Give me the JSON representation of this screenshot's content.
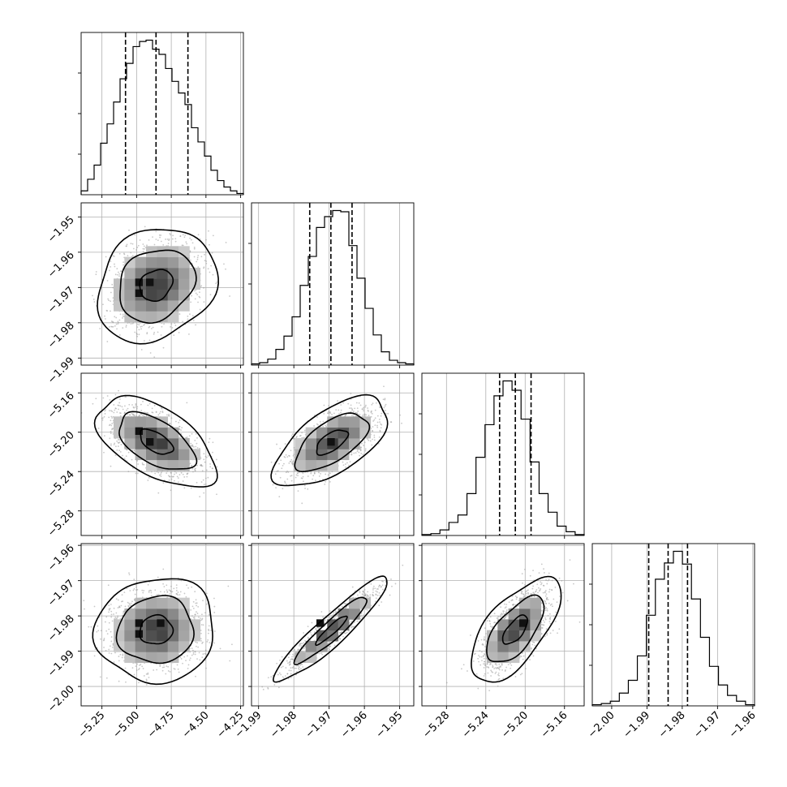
{
  "chart_data": {
    "type": "corner",
    "grid": true,
    "colors": {
      "ink": "#000000",
      "grid": "#b0b0b0",
      "scatter": "#9a9a9a",
      "background": "#ffffff"
    },
    "params": [
      {
        "range": [
          -5.4,
          -4.23
        ],
        "ticks": [
          -5.25,
          -5.0,
          -4.75,
          -4.5,
          -4.25
        ],
        "tick_labels": [
          "−5.25",
          "−5.00",
          "−4.75",
          "−4.50",
          "−4.25"
        ]
      },
      {
        "range": [
          -1.992,
          -1.946
        ],
        "ticks": [
          -1.99,
          -1.98,
          -1.97,
          -1.96,
          -1.95
        ],
        "tick_labels": [
          "−1.99",
          "−1.98",
          "−1.97",
          "−1.96",
          "−1.95"
        ]
      },
      {
        "range": [
          -5.305,
          -5.14
        ],
        "ticks": [
          -5.28,
          -5.24,
          -5.2,
          -5.16
        ],
        "tick_labels": [
          "−5.28",
          "−5.24",
          "−5.20",
          "−5.16"
        ]
      },
      {
        "range": [
          -2.0055,
          -1.9595
        ],
        "ticks": [
          -2.0,
          -1.99,
          -1.98,
          -1.97,
          -1.96
        ],
        "tick_labels": [
          "−2.00",
          "−1.99",
          "−1.98",
          "−1.97",
          "−1.96"
        ]
      }
    ],
    "histograms": [
      {
        "param": 0,
        "quantiles": [
          -5.08,
          -4.86,
          -4.63
        ],
        "edges": [
          -5.4,
          -4.23
        ],
        "counts": [
          0.3,
          1.2,
          2.3,
          4.0,
          5.5,
          7.2,
          9.0,
          10.2,
          11.5,
          11.9,
          12.0,
          11.3,
          10.9,
          9.8,
          8.8,
          7.9,
          7.0,
          5.2,
          4.1,
          3.0,
          1.9,
          1.1,
          0.6,
          0.3,
          0.1
        ]
      },
      {
        "param": 1,
        "quantiles": [
          -1.9755,
          -1.9695,
          -1.9635
        ],
        "edges": [
          -1.992,
          -1.946
        ],
        "counts": [
          0.1,
          0.2,
          0.5,
          1.3,
          2.4,
          4.0,
          6.6,
          9.0,
          11.4,
          12.3,
          12.8,
          12.7,
          9.9,
          7.2,
          4.7,
          2.5,
          1.1,
          0.4,
          0.2,
          0.1
        ]
      },
      {
        "param": 2,
        "quantiles": [
          -5.226,
          -5.21,
          -5.194
        ],
        "edges": [
          -5.305,
          -5.14
        ],
        "counts": [
          0.1,
          0.2,
          0.6,
          1.4,
          2.2,
          4.5,
          8.4,
          11.9,
          15.0,
          16.6,
          15.6,
          12.5,
          7.9,
          4.5,
          2.5,
          1.0,
          0.4,
          0.1
        ]
      },
      {
        "param": 3,
        "quantiles": [
          -1.9895,
          -1.984,
          -1.9785
        ],
        "edges": [
          -2.0055,
          -1.9595
        ],
        "counts": [
          0.1,
          0.2,
          0.4,
          1.1,
          2.2,
          4.3,
          7.8,
          10.9,
          12.3,
          13.3,
          12.2,
          9.2,
          5.9,
          3.4,
          1.8,
          0.9,
          0.4,
          0.1
        ]
      }
    ],
    "pairs": [
      {
        "x_param": 0,
        "y_param": 1,
        "mean": [
          -4.86,
          -1.9693
        ],
        "sd": [
          0.16,
          0.006
        ],
        "corr": 0.2,
        "box_levels": [
          0.35,
          0.7,
          1.05
        ],
        "densest_cells": [
          [
            -4.95,
            -1.9685
          ],
          [
            -4.9,
            -1.9695
          ],
          [
            -4.95,
            -1.972
          ]
        ]
      },
      {
        "x_param": 0,
        "y_param": 2,
        "mean": [
          -4.86,
          -5.21
        ],
        "sd": [
          0.16,
          0.017
        ],
        "corr": -0.55,
        "box_levels": [
          0.32,
          0.66,
          0.99
        ],
        "densest_cells": [
          [
            -5.0,
            -5.2
          ],
          [
            -4.9,
            -5.207
          ]
        ]
      },
      {
        "x_param": 1,
        "y_param": 2,
        "mean": [
          -1.9693,
          -5.21
        ],
        "sd": [
          0.006,
          0.017
        ],
        "corr": 0.62,
        "box_levels": [
          0.32,
          0.66,
          0.99
        ],
        "densest_cells": [
          [
            -1.97,
            -5.208
          ]
        ]
      },
      {
        "x_param": 0,
        "y_param": 3,
        "mean": [
          -4.86,
          -1.984
        ],
        "sd": [
          0.16,
          0.0055
        ],
        "corr": 0.05,
        "box_levels": [
          0.35,
          0.7,
          1.05
        ],
        "densest_cells": [
          [
            -5.0,
            -1.983
          ],
          [
            -4.95,
            -1.9855
          ],
          [
            -4.8,
            -1.983
          ]
        ]
      },
      {
        "x_param": 1,
        "y_param": 3,
        "mean": [
          -1.9693,
          -1.984
        ],
        "sd": [
          0.006,
          0.0055
        ],
        "corr": 0.93,
        "box_levels": [
          0.32,
          0.66,
          0.99
        ],
        "densest_cells": [
          [
            -1.971,
            -1.984
          ]
        ]
      },
      {
        "x_param": 2,
        "y_param": 3,
        "mean": [
          -5.21,
          -1.984
        ],
        "sd": [
          0.017,
          0.0055
        ],
        "corr": 0.65,
        "box_levels": [
          0.32,
          0.66,
          0.99
        ],
        "densest_cells": [
          [
            -5.202,
            -1.9835
          ]
        ]
      }
    ]
  }
}
